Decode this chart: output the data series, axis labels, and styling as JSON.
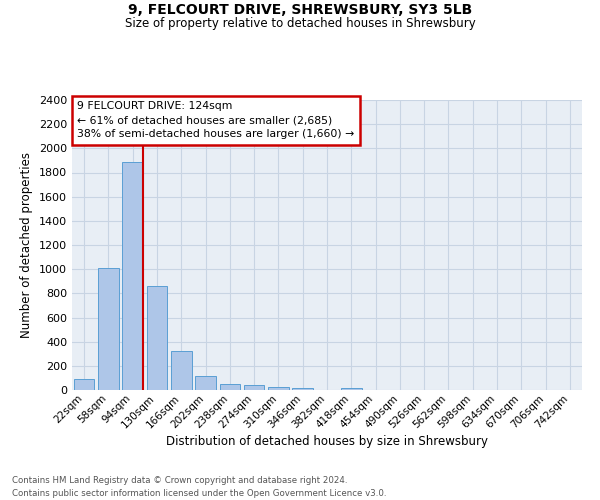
{
  "title": "9, FELCOURT DRIVE, SHREWSBURY, SY3 5LB",
  "subtitle": "Size of property relative to detached houses in Shrewsbury",
  "xlabel": "Distribution of detached houses by size in Shrewsbury",
  "ylabel": "Number of detached properties",
  "bar_labels": [
    "22sqm",
    "58sqm",
    "94sqm",
    "130sqm",
    "166sqm",
    "202sqm",
    "238sqm",
    "274sqm",
    "310sqm",
    "346sqm",
    "382sqm",
    "418sqm",
    "454sqm",
    "490sqm",
    "526sqm",
    "562sqm",
    "598sqm",
    "634sqm",
    "670sqm",
    "706sqm",
    "742sqm"
  ],
  "bar_values": [
    90,
    1010,
    1890,
    860,
    320,
    115,
    52,
    42,
    28,
    20,
    0,
    20,
    0,
    0,
    0,
    0,
    0,
    0,
    0,
    0,
    0
  ],
  "bar_color": "#aec6e8",
  "bar_edge_color": "#5a9fd4",
  "annotation_title": "9 FELCOURT DRIVE: 124sqm",
  "annotation_line1": "← 61% of detached houses are smaller (2,685)",
  "annotation_line2": "38% of semi-detached houses are larger (1,660) →",
  "annotation_box_color": "#ffffff",
  "annotation_box_edge_color": "#cc0000",
  "vline_color": "#cc0000",
  "ylim": [
    0,
    2400
  ],
  "yticks": [
    0,
    200,
    400,
    600,
    800,
    1000,
    1200,
    1400,
    1600,
    1800,
    2000,
    2200,
    2400
  ],
  "grid_color": "#c8d4e3",
  "bg_color": "#e8eef5",
  "footer_line1": "Contains HM Land Registry data © Crown copyright and database right 2024.",
  "footer_line2": "Contains public sector information licensed under the Open Government Licence v3.0."
}
